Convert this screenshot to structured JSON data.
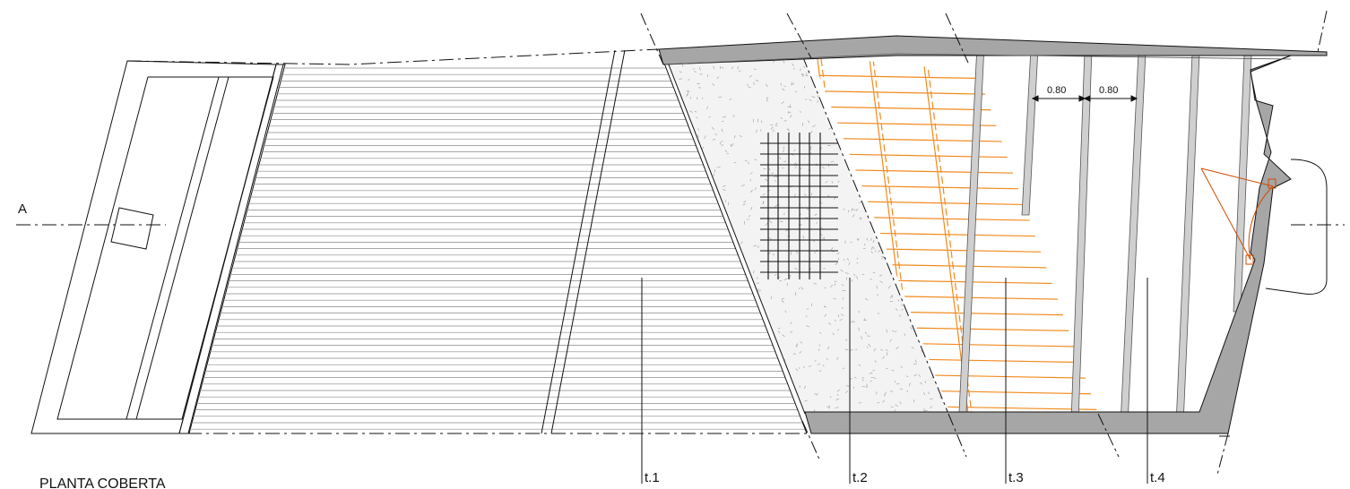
{
  "drawing": {
    "title": "PLANTA COBERTA",
    "section_label": "A",
    "zones": [
      {
        "label": "t.1"
      },
      {
        "label": "t.2"
      },
      {
        "label": "t.3"
      },
      {
        "label": "t.4"
      }
    ],
    "dimensions": [
      {
        "value": "0.80"
      },
      {
        "value": "0.80"
      }
    ]
  },
  "colors": {
    "line": "#111111",
    "wall": "#a6a6a6",
    "timber": "#f28a1e",
    "beam": "#cfcfcf"
  }
}
